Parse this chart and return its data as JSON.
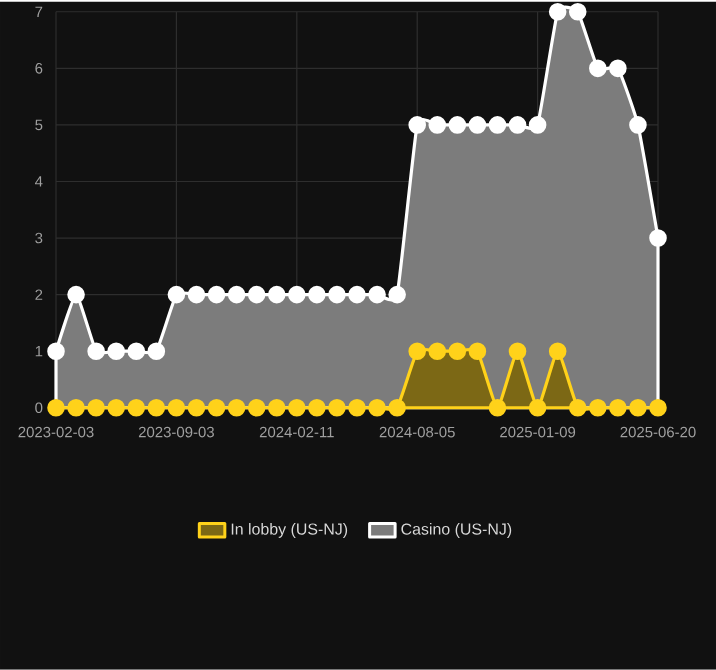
{
  "chart_data": {
    "type": "area",
    "categories": [
      "2023-02-03",
      null,
      null,
      null,
      null,
      null,
      "2023-09-03",
      null,
      null,
      null,
      null,
      null,
      "2024-02-11",
      null,
      null,
      null,
      null,
      null,
      "2024-08-05",
      null,
      null,
      null,
      null,
      null,
      "2025-01-09",
      null,
      null,
      null,
      null,
      null,
      "2025-06-20"
    ],
    "series": [
      {
        "name": "In lobby (US-NJ)",
        "color": "#ffd21a",
        "values": [
          0,
          0,
          0,
          0,
          0,
          0,
          0,
          0,
          0,
          0,
          0,
          0,
          0,
          0,
          0,
          0,
          0,
          0,
          1,
          1,
          1,
          1,
          0,
          1,
          0,
          1,
          0,
          0,
          0,
          0,
          0
        ]
      },
      {
        "name": "Casino (US-NJ)",
        "color": "#ffffff",
        "values": [
          1,
          2,
          1,
          1,
          1,
          1,
          2,
          2,
          2,
          2,
          2,
          2,
          2,
          2,
          2,
          2,
          2,
          2,
          5,
          5,
          5,
          5,
          5,
          5,
          5,
          7,
          7,
          6,
          6,
          5,
          3
        ]
      }
    ],
    "ylim": [
      0,
      7
    ],
    "yticks": [
      0,
      1,
      2,
      3,
      4,
      5,
      6,
      7
    ],
    "grid": true,
    "legend": "bottom",
    "marker": "circle"
  }
}
